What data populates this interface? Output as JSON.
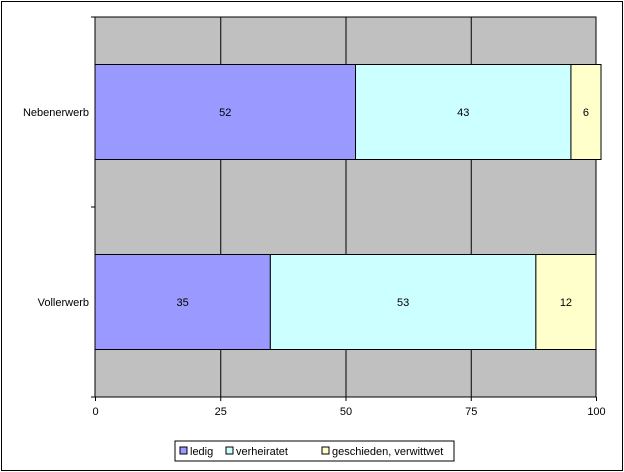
{
  "chart_data": {
    "type": "bar",
    "orientation": "horizontal",
    "stacked": true,
    "percent_stacked": true,
    "categories": [
      "Nebenerwerb",
      "Vollerwerb"
    ],
    "series": [
      {
        "name": "ledig",
        "values": [
          52,
          35
        ],
        "color": "#9999ff"
      },
      {
        "name": "verheiratet",
        "values": [
          43,
          53
        ],
        "color": "#ccffff"
      },
      {
        "name": "geschieden, verwittwet",
        "values": [
          6,
          12
        ],
        "color": "#ffffcc"
      }
    ],
    "data_labels": [
      [
        "52",
        "43",
        "6"
      ],
      [
        "35",
        "53",
        "12"
      ]
    ],
    "xlim": [
      0,
      100
    ],
    "xticks": [
      "0",
      "25",
      "50",
      "75",
      "100"
    ],
    "grid": true,
    "plot_background": "#c0c0c0",
    "legend_position": "bottom",
    "title": "",
    "xlabel": "",
    "ylabel": ""
  }
}
